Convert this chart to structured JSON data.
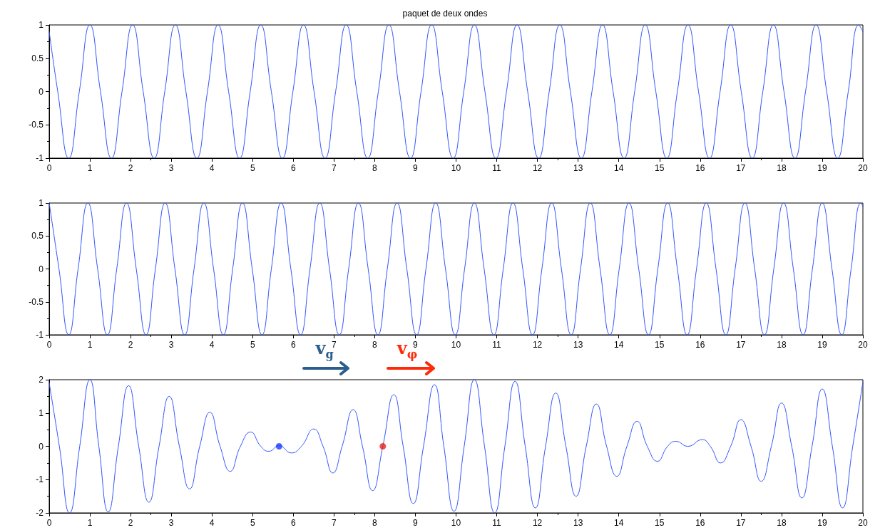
{
  "chart_data": [
    {
      "type": "line",
      "title": "paquet de deux ondes",
      "xlim": [
        0,
        20
      ],
      "xticks": [
        0,
        1,
        2,
        3,
        4,
        5,
        6,
        7,
        8,
        9,
        10,
        11,
        12,
        13,
        14,
        15,
        16,
        17,
        18,
        19,
        20
      ],
      "ylim": [
        -1,
        1
      ],
      "yticks": [
        -1,
        -0.5,
        0,
        0.5,
        1
      ],
      "series": [
        {
          "color": "#3355ff",
          "x": [
            0,
            0.21,
            0.48,
            0.74,
            1.0,
            1.26,
            1.53,
            1.79,
            2.05,
            2.31,
            2.58,
            2.84,
            3.1,
            3.36,
            3.63,
            3.89,
            4.15,
            4.41,
            4.68,
            4.94,
            5.2,
            5.46,
            5.73,
            5.99,
            6.25,
            6.51,
            6.78,
            7.04,
            7.3,
            7.56,
            7.83,
            8.09,
            8.35,
            8.61,
            8.88,
            9.14,
            9.4,
            9.66,
            9.93,
            10.19,
            10.45,
            10.71,
            10.98,
            11.24,
            11.5,
            11.76,
            12.03,
            12.29,
            12.55,
            12.81,
            13.08,
            13.34,
            13.6,
            13.86,
            14.13,
            14.39,
            14.65,
            14.91,
            15.18,
            15.44,
            15.7,
            15.96,
            16.23,
            16.49,
            16.75,
            17.01,
            17.28,
            17.54,
            17.8,
            18.06,
            18.33,
            18.59,
            18.85,
            19.11,
            19.38,
            19.64,
            19.9,
            20
          ],
          "values": [
            0.9,
            0,
            -1,
            0,
            1,
            0,
            -1,
            0,
            1,
            0,
            -1,
            0,
            1,
            0,
            -1,
            0,
            1,
            0,
            -1,
            0,
            1,
            0,
            -1,
            0,
            1,
            0,
            -1,
            0,
            1,
            0,
            -1,
            0,
            1,
            0,
            -1,
            0,
            1,
            0,
            -1,
            0,
            1,
            0,
            -1,
            0,
            1,
            0,
            -1,
            0,
            1,
            0,
            -1,
            0,
            1,
            0,
            -1,
            0,
            1,
            0,
            -1,
            0,
            1,
            0,
            -1,
            0,
            1,
            0,
            -1,
            0,
            1,
            0,
            -1,
            0,
            1,
            0,
            -1,
            0,
            1,
            0.9
          ]
        }
      ]
    },
    {
      "type": "line",
      "xlim": [
        0,
        20
      ],
      "xticks": [
        0,
        1,
        2,
        3,
        4,
        5,
        6,
        7,
        8,
        9,
        10,
        11,
        12,
        13,
        14,
        15,
        16,
        17,
        18,
        19,
        20
      ],
      "ylim": [
        -1,
        1
      ],
      "yticks": [
        -1,
        -0.5,
        0,
        0.5,
        1
      ],
      "series": [
        {
          "color": "#3355ff",
          "x": [
            0,
            0.24,
            0.48,
            0.71,
            0.95,
            1.19,
            1.43,
            1.66,
            1.9,
            2.14,
            2.38,
            2.61,
            2.85,
            3.09,
            3.33,
            3.56,
            3.8,
            4.04,
            4.28,
            4.51,
            4.75,
            4.99,
            5.23,
            5.46,
            5.7,
            5.94,
            6.18,
            6.41,
            6.65,
            6.89,
            7.13,
            7.36,
            7.6,
            7.84,
            8.08,
            8.31,
            8.55,
            8.79,
            9.03,
            9.26,
            9.5,
            9.74,
            9.98,
            10.21,
            10.45,
            10.69,
            10.93,
            11.16,
            11.4,
            11.64,
            11.88,
            12.11,
            12.35,
            12.59,
            12.83,
            13.06,
            13.3,
            13.54,
            13.78,
            14.01,
            14.25,
            14.49,
            14.73,
            14.96,
            15.2,
            15.44,
            15.68,
            15.91,
            16.15,
            16.39,
            16.63,
            16.86,
            17.1,
            17.34,
            17.58,
            17.81,
            18.05,
            18.29,
            18.53,
            18.76,
            19.0,
            19.24,
            19.48,
            19.71,
            19.95,
            20
          ],
          "values": [
            1,
            0,
            -1,
            0,
            1,
            0,
            -1,
            0,
            1,
            0,
            -1,
            0,
            1,
            0,
            -1,
            0,
            1,
            0,
            -1,
            0,
            1,
            0,
            -1,
            0,
            1,
            0,
            -1,
            0,
            1,
            0,
            -1,
            0,
            1,
            0,
            -1,
            0,
            1,
            0,
            -1,
            0,
            1,
            0,
            -1,
            0,
            1,
            0,
            -1,
            0,
            1,
            0,
            -1,
            0,
            1,
            0,
            -1,
            0,
            1,
            0,
            -1,
            0,
            1,
            0,
            -1,
            0,
            1,
            0,
            -1,
            0,
            1,
            0,
            -1,
            0,
            1,
            0,
            -1,
            0,
            1,
            0,
            -1,
            0,
            1,
            0,
            -1,
            0,
            1,
            0.95
          ]
        }
      ]
    },
    {
      "type": "line",
      "xlim": [
        0,
        20
      ],
      "xticks": [
        0,
        1,
        2,
        3,
        4,
        5,
        6,
        7,
        8,
        9,
        10,
        11,
        12,
        13,
        14,
        15,
        16,
        17,
        18,
        19,
        20
      ],
      "ylim": [
        -2,
        2
      ],
      "yticks": [
        -2,
        -1,
        0,
        1,
        2
      ],
      "annotations": [
        "v$_{g}$",
        "v$_{φ}$"
      ],
      "series": [
        {
          "color": "#3355ff",
          "x": [
            0,
            0.25,
            0.5,
            0.75,
            1.0,
            1.22,
            1.45,
            1.7,
            1.95,
            2.2,
            2.45,
            2.7,
            2.95,
            3.2,
            3.45,
            3.7,
            3.95,
            4.2,
            4.45,
            4.7,
            4.95,
            5.2,
            5.4,
            5.65,
            5.95,
            6.2,
            6.5,
            6.73,
            6.97,
            7.2,
            7.47,
            7.7,
            7.95,
            8.2,
            8.47,
            8.7,
            8.95,
            9.2,
            9.47,
            9.7,
            9.95,
            10.2,
            10.45,
            10.7,
            10.95,
            11.2,
            11.45,
            11.7,
            11.95,
            12.2,
            12.45,
            12.7,
            12.95,
            13.2,
            13.45,
            13.7,
            13.95,
            14.2,
            14.45,
            14.7,
            14.95,
            15.2,
            15.4,
            15.7,
            16.05,
            16.25,
            16.5,
            16.75,
            17.0,
            17.25,
            17.5,
            17.75,
            18.0,
            18.25,
            18.5,
            18.75,
            19.0,
            19.25,
            19.5,
            19.75,
            20
          ],
          "values": [
            1.9,
            0,
            -2,
            0,
            2,
            0,
            -1.97,
            0,
            1.82,
            0,
            -1.68,
            0,
            1.5,
            0,
            -1.28,
            0,
            1.02,
            0,
            -0.75,
            0,
            0.43,
            0,
            -0.15,
            0.02,
            -0.2,
            0,
            0.52,
            0,
            -0.8,
            0,
            1.1,
            0,
            -1.33,
            0,
            1.55,
            0,
            -1.72,
            0,
            1.85,
            0,
            -1.95,
            0,
            2,
            0,
            -2,
            0,
            1.95,
            0,
            -1.85,
            0,
            1.6,
            0,
            -1.5,
            0,
            1.27,
            0,
            -0.9,
            0,
            0.75,
            0,
            -0.45,
            0,
            0.15,
            0,
            0.2,
            0,
            -0.5,
            0,
            0.8,
            0,
            -1.05,
            0,
            1.3,
            0,
            -1.55,
            0,
            1.72,
            0,
            -1.85,
            0,
            1.93
          ]
        },
        {
          "type": "scatter",
          "marker": "circle",
          "color": "#1a3cff",
          "x": [
            5.65
          ],
          "values": [
            0
          ]
        },
        {
          "type": "scatter",
          "marker": "circle",
          "color": "#e3241b",
          "x": [
            8.2
          ],
          "values": [
            0
          ]
        }
      ]
    }
  ]
}
